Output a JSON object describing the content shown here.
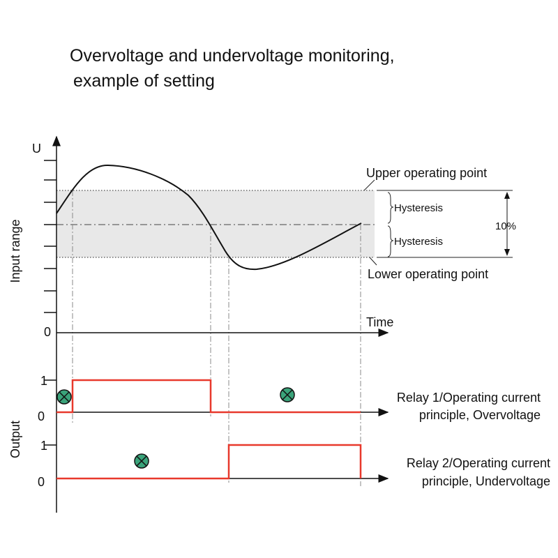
{
  "title": [
    "Overvoltage and undervoltage monitoring,",
    "example of setting"
  ],
  "input": {
    "axis_label": "U",
    "title": "Input range",
    "zero": "0",
    "time_label": "Time",
    "upper_point": "Upper operating point",
    "lower_point": "Lower operating point",
    "hysteresis": [
      "Hysteresis",
      "Hysteresis"
    ],
    "band_label": "10%"
  },
  "output": {
    "title": "Output",
    "relays": [
      {
        "high": "1",
        "low": "0",
        "label": [
          "Relay 1/Operating current",
          "principle, Overvoltage"
        ]
      },
      {
        "high": "1",
        "low": "0",
        "label": [
          "Relay 2/Operating current",
          "principle, Undervoltage"
        ]
      }
    ]
  }
}
